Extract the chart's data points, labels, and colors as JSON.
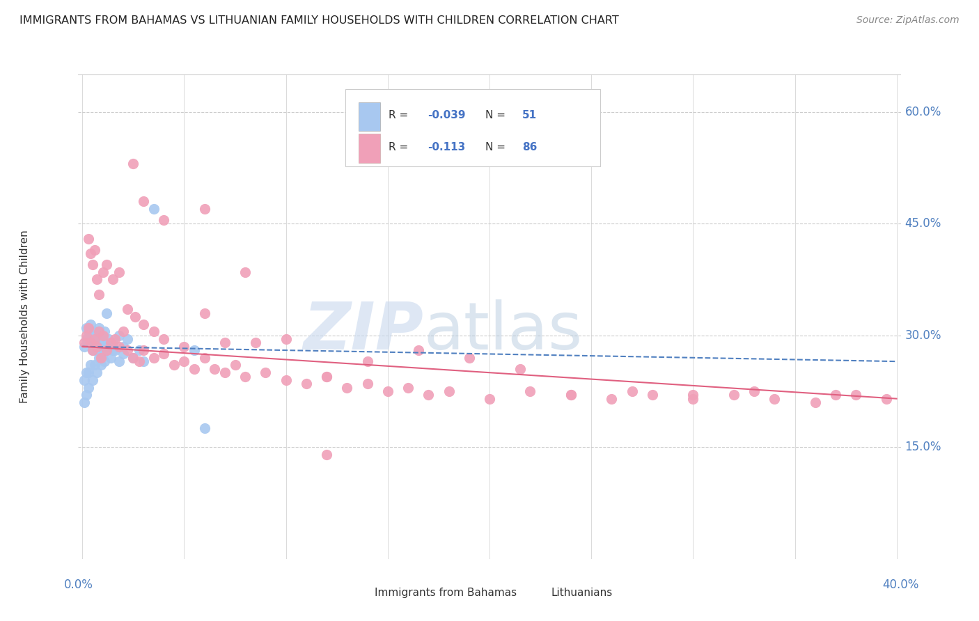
{
  "title": "IMMIGRANTS FROM BAHAMAS VS LITHUANIAN FAMILY HOUSEHOLDS WITH CHILDREN CORRELATION CHART",
  "source": "Source: ZipAtlas.com",
  "ylabel": "Family Households with Children",
  "color_blue": "#a8c8f0",
  "color_pink": "#f0a0b8",
  "color_blue_line": "#5080c0",
  "color_pink_line": "#e06080",
  "color_grid": "#cccccc",
  "ytick_vals": [
    0.15,
    0.3,
    0.45,
    0.6
  ],
  "ytick_labels": [
    "15.0%",
    "30.0%",
    "45.0%",
    "60.0%"
  ],
  "xlim": [
    -0.002,
    0.402
  ],
  "ylim": [
    0.0,
    0.65
  ],
  "blue_x": [
    0.001,
    0.002,
    0.002,
    0.003,
    0.003,
    0.004,
    0.004,
    0.005,
    0.005,
    0.006,
    0.006,
    0.007,
    0.007,
    0.008,
    0.008,
    0.009,
    0.009,
    0.01,
    0.01,
    0.011,
    0.012,
    0.013,
    0.014,
    0.015,
    0.016,
    0.018,
    0.02,
    0.022,
    0.025,
    0.028,
    0.03,
    0.012,
    0.015,
    0.018,
    0.02,
    0.008,
    0.006,
    0.004,
    0.003,
    0.002,
    0.001,
    0.001,
    0.002,
    0.003,
    0.005,
    0.007,
    0.009,
    0.011,
    0.055,
    0.06,
    0.035
  ],
  "blue_y": [
    0.285,
    0.295,
    0.31,
    0.305,
    0.29,
    0.3,
    0.315,
    0.295,
    0.28,
    0.305,
    0.29,
    0.3,
    0.28,
    0.31,
    0.295,
    0.285,
    0.3,
    0.29,
    0.275,
    0.305,
    0.285,
    0.295,
    0.27,
    0.29,
    0.28,
    0.3,
    0.285,
    0.295,
    0.27,
    0.28,
    0.265,
    0.33,
    0.28,
    0.265,
    0.275,
    0.27,
    0.26,
    0.26,
    0.25,
    0.25,
    0.24,
    0.21,
    0.22,
    0.23,
    0.24,
    0.25,
    0.26,
    0.265,
    0.28,
    0.175,
    0.47
  ],
  "pink_x": [
    0.001,
    0.002,
    0.003,
    0.004,
    0.005,
    0.006,
    0.007,
    0.008,
    0.009,
    0.01,
    0.012,
    0.014,
    0.016,
    0.018,
    0.02,
    0.022,
    0.025,
    0.028,
    0.03,
    0.035,
    0.04,
    0.045,
    0.05,
    0.055,
    0.06,
    0.065,
    0.07,
    0.075,
    0.08,
    0.09,
    0.1,
    0.11,
    0.12,
    0.13,
    0.14,
    0.15,
    0.16,
    0.17,
    0.18,
    0.2,
    0.22,
    0.24,
    0.26,
    0.28,
    0.3,
    0.32,
    0.34,
    0.36,
    0.38,
    0.395,
    0.003,
    0.004,
    0.005,
    0.006,
    0.007,
    0.008,
    0.01,
    0.012,
    0.015,
    0.018,
    0.022,
    0.026,
    0.03,
    0.035,
    0.04,
    0.05,
    0.06,
    0.07,
    0.085,
    0.1,
    0.12,
    0.14,
    0.165,
    0.19,
    0.215,
    0.24,
    0.27,
    0.3,
    0.33,
    0.37,
    0.025,
    0.03,
    0.04,
    0.06,
    0.08,
    0.12
  ],
  "pink_y": [
    0.29,
    0.3,
    0.31,
    0.29,
    0.28,
    0.295,
    0.285,
    0.305,
    0.27,
    0.3,
    0.28,
    0.29,
    0.295,
    0.285,
    0.305,
    0.28,
    0.27,
    0.265,
    0.28,
    0.27,
    0.275,
    0.26,
    0.265,
    0.255,
    0.27,
    0.255,
    0.25,
    0.26,
    0.245,
    0.25,
    0.24,
    0.235,
    0.245,
    0.23,
    0.235,
    0.225,
    0.23,
    0.22,
    0.225,
    0.215,
    0.225,
    0.22,
    0.215,
    0.22,
    0.215,
    0.22,
    0.215,
    0.21,
    0.22,
    0.215,
    0.43,
    0.41,
    0.395,
    0.415,
    0.375,
    0.355,
    0.385,
    0.395,
    0.375,
    0.385,
    0.335,
    0.325,
    0.315,
    0.305,
    0.295,
    0.285,
    0.33,
    0.29,
    0.29,
    0.295,
    0.245,
    0.265,
    0.28,
    0.27,
    0.255,
    0.22,
    0.225,
    0.22,
    0.225,
    0.22,
    0.53,
    0.48,
    0.455,
    0.47,
    0.385,
    0.14
  ],
  "watermark_zip": "ZIP",
  "watermark_atlas": "atlas"
}
